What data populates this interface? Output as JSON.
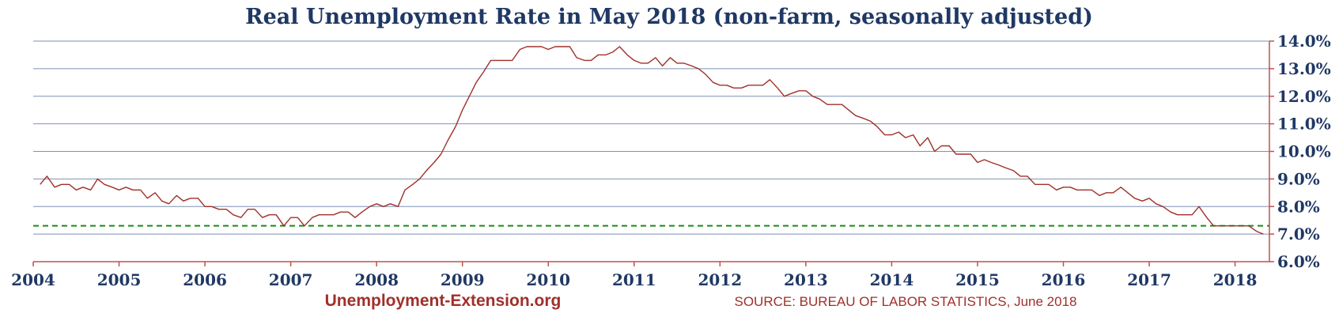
{
  "chart_data": {
    "type": "line",
    "title": "Real Unemployment Rate in May 2018 (non-farm, seasonally adjusted)",
    "xlabel": "",
    "ylabel": "",
    "x_tick_labels": [
      "2004",
      "2005",
      "2006",
      "2007",
      "2008",
      "2009",
      "2010",
      "2011",
      "2012",
      "2013",
      "2014",
      "2015",
      "2016",
      "2017",
      "2018"
    ],
    "y_tick_labels": [
      "6.0%",
      "7.0%",
      "8.0%",
      "9.0%",
      "10.0%",
      "11.0%",
      "12.0%",
      "13.0%",
      "14.0%"
    ],
    "xlim": [
      2004.0,
      2018.4
    ],
    "ylim": [
      6.0,
      14.0
    ],
    "y_axis_side": "right",
    "grid": "horizontal",
    "reference_line": {
      "value": 7.3,
      "style": "dashed",
      "color": "#1a8a1a"
    },
    "series": [
      {
        "color": "#a0302a",
        "points": [
          [
            2004.08,
            8.8
          ],
          [
            2004.16,
            9.1
          ],
          [
            2004.25,
            8.7
          ],
          [
            2004.33,
            8.8
          ],
          [
            2004.42,
            8.8
          ],
          [
            2004.5,
            8.6
          ],
          [
            2004.58,
            8.7
          ],
          [
            2004.67,
            8.6
          ],
          [
            2004.75,
            9.0
          ],
          [
            2004.83,
            8.8
          ],
          [
            2004.92,
            8.7
          ],
          [
            2005.0,
            8.6
          ],
          [
            2005.08,
            8.7
          ],
          [
            2005.16,
            8.6
          ],
          [
            2005.25,
            8.6
          ],
          [
            2005.33,
            8.3
          ],
          [
            2005.42,
            8.5
          ],
          [
            2005.5,
            8.2
          ],
          [
            2005.58,
            8.1
          ],
          [
            2005.67,
            8.4
          ],
          [
            2005.75,
            8.2
          ],
          [
            2005.83,
            8.3
          ],
          [
            2005.92,
            8.3
          ],
          [
            2006.0,
            8.0
          ],
          [
            2006.08,
            8.0
          ],
          [
            2006.16,
            7.9
          ],
          [
            2006.25,
            7.9
          ],
          [
            2006.33,
            7.7
          ],
          [
            2006.42,
            7.6
          ],
          [
            2006.5,
            7.9
          ],
          [
            2006.58,
            7.9
          ],
          [
            2006.67,
            7.6
          ],
          [
            2006.75,
            7.7
          ],
          [
            2006.83,
            7.7
          ],
          [
            2006.92,
            7.3
          ],
          [
            2007.0,
            7.6
          ],
          [
            2007.08,
            7.6
          ],
          [
            2007.16,
            7.3
          ],
          [
            2007.25,
            7.6
          ],
          [
            2007.33,
            7.7
          ],
          [
            2007.42,
            7.7
          ],
          [
            2007.5,
            7.7
          ],
          [
            2007.58,
            7.8
          ],
          [
            2007.67,
            7.8
          ],
          [
            2007.75,
            7.6
          ],
          [
            2007.83,
            7.8
          ],
          [
            2007.92,
            8.0
          ],
          [
            2008.0,
            8.1
          ],
          [
            2008.08,
            8.0
          ],
          [
            2008.16,
            8.1
          ],
          [
            2008.25,
            8.0
          ],
          [
            2008.33,
            8.6
          ],
          [
            2008.42,
            8.8
          ],
          [
            2008.5,
            9.0
          ],
          [
            2008.58,
            9.3
          ],
          [
            2008.67,
            9.6
          ],
          [
            2008.75,
            9.9
          ],
          [
            2008.83,
            10.4
          ],
          [
            2008.92,
            10.9
          ],
          [
            2009.0,
            11.5
          ],
          [
            2009.08,
            12.0
          ],
          [
            2009.16,
            12.5
          ],
          [
            2009.25,
            12.9
          ],
          [
            2009.33,
            13.3
          ],
          [
            2009.42,
            13.3
          ],
          [
            2009.5,
            13.3
          ],
          [
            2009.58,
            13.3
          ],
          [
            2009.67,
            13.7
          ],
          [
            2009.75,
            13.8
          ],
          [
            2009.83,
            13.8
          ],
          [
            2009.92,
            13.8
          ],
          [
            2010.0,
            13.7
          ],
          [
            2010.08,
            13.8
          ],
          [
            2010.16,
            13.8
          ],
          [
            2010.25,
            13.8
          ],
          [
            2010.33,
            13.4
          ],
          [
            2010.42,
            13.3
          ],
          [
            2010.5,
            13.3
          ],
          [
            2010.58,
            13.5
          ],
          [
            2010.67,
            13.5
          ],
          [
            2010.75,
            13.6
          ],
          [
            2010.83,
            13.8
          ],
          [
            2010.92,
            13.5
          ],
          [
            2011.0,
            13.3
          ],
          [
            2011.08,
            13.2
          ],
          [
            2011.16,
            13.2
          ],
          [
            2011.25,
            13.4
          ],
          [
            2011.33,
            13.1
          ],
          [
            2011.42,
            13.4
          ],
          [
            2011.5,
            13.2
          ],
          [
            2011.58,
            13.2
          ],
          [
            2011.67,
            13.1
          ],
          [
            2011.75,
            13.0
          ],
          [
            2011.83,
            12.8
          ],
          [
            2011.92,
            12.5
          ],
          [
            2012.0,
            12.4
          ],
          [
            2012.08,
            12.4
          ],
          [
            2012.16,
            12.3
          ],
          [
            2012.25,
            12.3
          ],
          [
            2012.33,
            12.4
          ],
          [
            2012.42,
            12.4
          ],
          [
            2012.5,
            12.4
          ],
          [
            2012.58,
            12.6
          ],
          [
            2012.67,
            12.3
          ],
          [
            2012.75,
            12.0
          ],
          [
            2012.83,
            12.1
          ],
          [
            2012.92,
            12.2
          ],
          [
            2013.0,
            12.2
          ],
          [
            2013.08,
            12.0
          ],
          [
            2013.16,
            11.9
          ],
          [
            2013.25,
            11.7
          ],
          [
            2013.33,
            11.7
          ],
          [
            2013.42,
            11.7
          ],
          [
            2013.5,
            11.5
          ],
          [
            2013.58,
            11.3
          ],
          [
            2013.67,
            11.2
          ],
          [
            2013.75,
            11.1
          ],
          [
            2013.83,
            10.9
          ],
          [
            2013.92,
            10.6
          ],
          [
            2014.0,
            10.6
          ],
          [
            2014.08,
            10.7
          ],
          [
            2014.16,
            10.5
          ],
          [
            2014.25,
            10.6
          ],
          [
            2014.33,
            10.2
          ],
          [
            2014.42,
            10.5
          ],
          [
            2014.5,
            10.0
          ],
          [
            2014.58,
            10.2
          ],
          [
            2014.67,
            10.2
          ],
          [
            2014.75,
            9.9
          ],
          [
            2014.83,
            9.9
          ],
          [
            2014.92,
            9.9
          ],
          [
            2015.0,
            9.6
          ],
          [
            2015.08,
            9.7
          ],
          [
            2015.16,
            9.6
          ],
          [
            2015.25,
            9.5
          ],
          [
            2015.33,
            9.4
          ],
          [
            2015.42,
            9.3
          ],
          [
            2015.5,
            9.1
          ],
          [
            2015.58,
            9.1
          ],
          [
            2015.67,
            8.8
          ],
          [
            2015.75,
            8.8
          ],
          [
            2015.83,
            8.8
          ],
          [
            2015.92,
            8.6
          ],
          [
            2016.0,
            8.7
          ],
          [
            2016.08,
            8.7
          ],
          [
            2016.16,
            8.6
          ],
          [
            2016.25,
            8.6
          ],
          [
            2016.33,
            8.6
          ],
          [
            2016.42,
            8.4
          ],
          [
            2016.5,
            8.5
          ],
          [
            2016.58,
            8.5
          ],
          [
            2016.67,
            8.7
          ],
          [
            2016.75,
            8.5
          ],
          [
            2016.83,
            8.3
          ],
          [
            2016.92,
            8.2
          ],
          [
            2017.0,
            8.3
          ],
          [
            2017.08,
            8.1
          ],
          [
            2017.16,
            8.0
          ],
          [
            2017.25,
            7.8
          ],
          [
            2017.33,
            7.7
          ],
          [
            2017.42,
            7.7
          ],
          [
            2017.5,
            7.7
          ],
          [
            2017.58,
            8.0
          ],
          [
            2017.67,
            7.6
          ],
          [
            2017.75,
            7.3
          ],
          [
            2017.83,
            7.3
          ],
          [
            2017.92,
            7.3
          ],
          [
            2018.0,
            7.3
          ],
          [
            2018.08,
            7.3
          ],
          [
            2018.16,
            7.3
          ],
          [
            2018.25,
            7.1
          ],
          [
            2018.33,
            7.0
          ]
        ]
      }
    ]
  },
  "footer": {
    "brand": "Unemployment-Extension.org",
    "source": "SOURCE: BUREAU OF LABOR STATISTICS, June 2018"
  },
  "colors": {
    "title": "#1f3864",
    "axis_labels": "#1f3864",
    "gridline": "#7f92b0",
    "axis_line": "#c0504d",
    "series_line": "#a0302a",
    "brand": "#a0302a",
    "source": "#a0302a",
    "reference_line": "#1a8a1a"
  }
}
